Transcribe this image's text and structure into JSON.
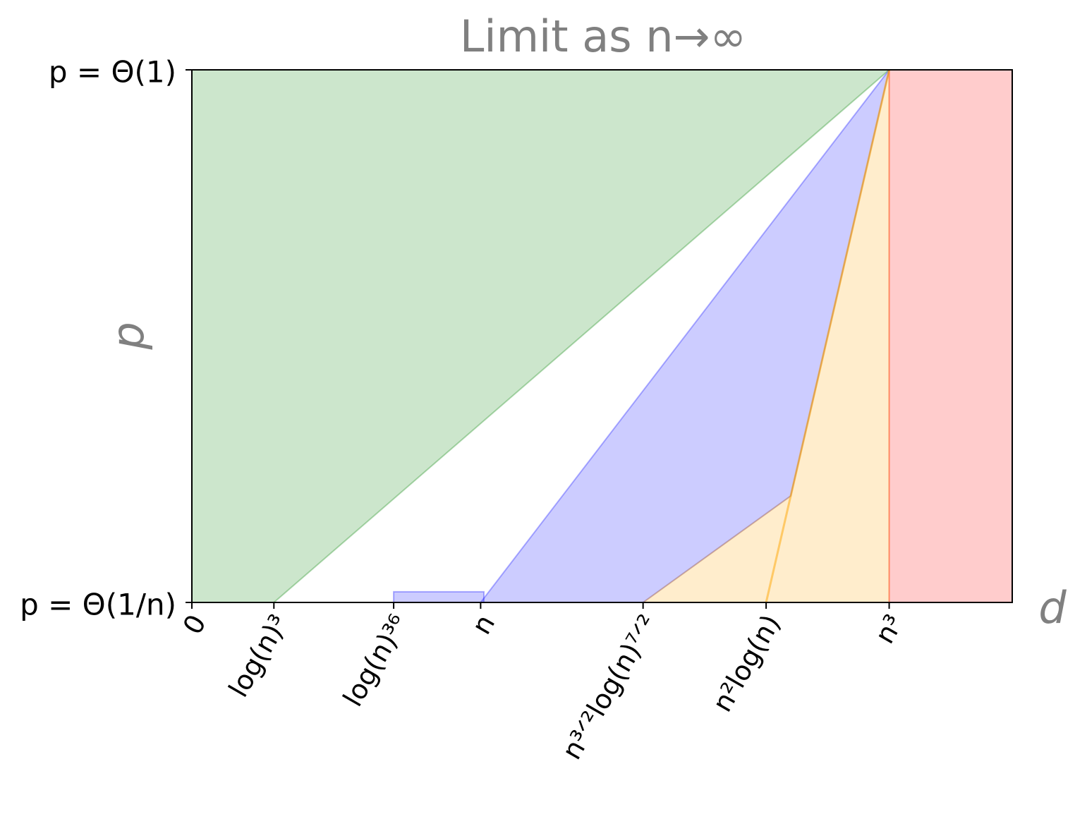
{
  "chart_data": {
    "type": "area",
    "title": "Limit as n→∞",
    "x_label": "d",
    "y_label": "p",
    "xlim": [
      0,
      10
    ],
    "ylim": [
      0,
      1
    ],
    "xticks": [
      0,
      {
        "value": 1,
        "label": "log(n)³"
      },
      {
        "value": 2.46,
        "label": "log(n)³⁶"
      },
      {
        "value": 3.52,
        "label": "n"
      },
      {
        "value": 5.5,
        "label": "n³ᐟ²log(n)⁷ᐟ²"
      },
      {
        "value": 7,
        "label": "n²log(n)"
      },
      {
        "value": 8.5,
        "label": "n³"
      }
    ],
    "yticks": [
      {
        "value": 0,
        "label": "p = Θ(1/n)"
      },
      {
        "value": 1,
        "label": "p = Θ(1)"
      }
    ],
    "opacity": 0.2,
    "regions": [
      {
        "color": "#008000",
        "x": [
          0,
          1,
          8.5,
          0
        ],
        "y": [
          0,
          0,
          1,
          1
        ]
      },
      {
        "color": "#0000ff",
        "x": [
          3.52,
          8.5,
          7.3,
          5.5
        ],
        "y": [
          0,
          1,
          0.2,
          0
        ]
      },
      {
        "color": "#ffa500",
        "x": [
          5.5,
          7.3,
          8.5,
          8.5
        ],
        "y": [
          0,
          0.2,
          1,
          0
        ]
      },
      {
        "color": "#ff0000",
        "x": [
          8.5,
          10,
          10,
          8.5
        ],
        "y": [
          0,
          0,
          1,
          1
        ]
      },
      {
        "color": "#0000ff",
        "x": [
          2.46,
          3.56,
          3.56,
          2.46
        ],
        "y": [
          0,
          0,
          0.02,
          0.02
        ]
      }
    ],
    "lines": [
      {
        "color": "#ffa500",
        "x": [
          7,
          8.5
        ],
        "y": [
          0,
          1
        ]
      }
    ]
  }
}
